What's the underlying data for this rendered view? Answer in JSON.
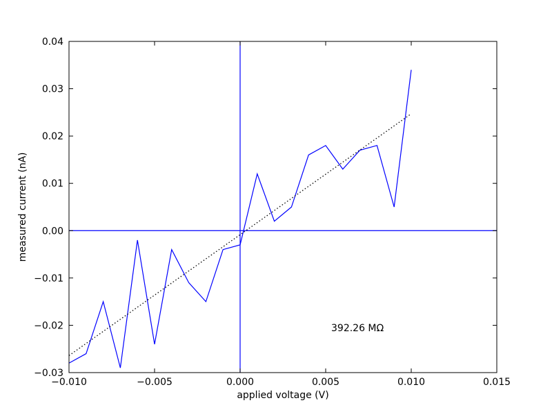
{
  "chart_data": {
    "type": "line",
    "xlabel": "applied voltage (V)",
    "ylabel": "measured current (nA)",
    "annotation": "392.26 MΩ",
    "xlim": [
      -0.01,
      0.015
    ],
    "ylim": [
      -0.03,
      0.04
    ],
    "xticks": [
      {
        "value": -0.01,
        "label": "−0.010"
      },
      {
        "value": -0.005,
        "label": "−0.005"
      },
      {
        "value": 0,
        "label": "0.000"
      },
      {
        "value": 0.005,
        "label": "0.005"
      },
      {
        "value": 0.01,
        "label": "0.010"
      },
      {
        "value": 0.015,
        "label": "0.015"
      }
    ],
    "yticks": [
      {
        "value": -0.03,
        "label": "−0.03"
      },
      {
        "value": -0.02,
        "label": "−0.02"
      },
      {
        "value": -0.01,
        "label": "−0.01"
      },
      {
        "value": 0,
        "label": "0.00"
      },
      0.01,
      0.02,
      0.03,
      0.04
    ],
    "axhline": 0,
    "axvline": 0,
    "refline_color": "#0000ff",
    "series": [
      {
        "color": "#0000ff",
        "style": "solid",
        "x": [
          -0.01,
          -0.009,
          -0.008,
          -0.007,
          -0.006,
          -0.005,
          -0.004,
          -0.003,
          -0.002,
          -0.001,
          0,
          0.001,
          0.002,
          0.003,
          0.004,
          0.005,
          0.006,
          0.007,
          0.008,
          0.009,
          0.01
        ],
        "values": [
          -0.028,
          -0.026,
          -0.015,
          -0.029,
          -0.002,
          -0.024,
          -0.004,
          -0.011,
          -0.015,
          -0.004,
          -0.003,
          0.012,
          0.002,
          0.005,
          0.016,
          0.018,
          0.013,
          0.017,
          0.018,
          0.005,
          0.034
        ]
      },
      {
        "color": "#000000",
        "style": "dotted",
        "x": [
          -0.01,
          0.01
        ],
        "values": [
          -0.0264,
          0.0247
        ]
      }
    ]
  }
}
